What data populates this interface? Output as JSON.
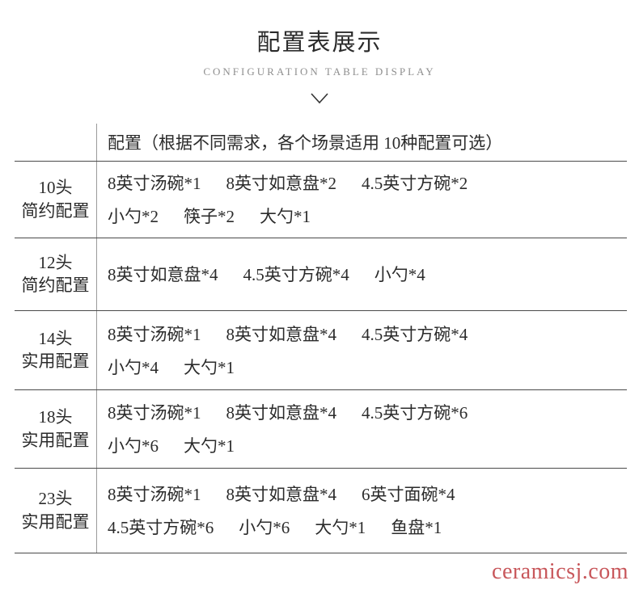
{
  "page": {
    "title": "配置表展示",
    "subtitle": "CONFIGURATION TABLE DISPLAY"
  },
  "icons": {
    "chevron_down": "chevron-down-icon"
  },
  "table": {
    "header": "配置（根据不同需求，各个场景适用 10种配置可选）",
    "rows": [
      {
        "label_lines": [
          "10头",
          "简约配置"
        ],
        "content_lines": [
          [
            "8英寸汤碗*1",
            "8英寸如意盘*2",
            "4.5英寸方碗*2"
          ],
          [
            "小勺*2",
            "筷子*2",
            "大勺*1"
          ]
        ]
      },
      {
        "label_lines": [
          "12头",
          "简约配置"
        ],
        "content_lines": [
          [
            "8英寸如意盘*4",
            "4.5英寸方碗*4",
            "小勺*4"
          ]
        ]
      },
      {
        "label_lines": [
          "14头",
          "实用配置"
        ],
        "content_lines": [
          [
            "8英寸汤碗*1",
            "8英寸如意盘*4",
            "4.5英寸方碗*4"
          ],
          [
            "小勺*4",
            "大勺*1"
          ]
        ]
      },
      {
        "label_lines": [
          "18头",
          "实用配置"
        ],
        "content_lines": [
          [
            "8英寸汤碗*1",
            "8英寸如意盘*4",
            "4.5英寸方碗*6"
          ],
          [
            "小勺*6",
            "大勺*1"
          ]
        ]
      },
      {
        "label_lines": [
          "23头",
          "实用配置"
        ],
        "content_lines": [
          [
            "8英寸汤碗*1",
            "8英寸如意盘*4",
            "6英寸面碗*4"
          ],
          [
            "4.5英寸方碗*6",
            "小勺*6",
            "大勺*1",
            "鱼盘*1"
          ]
        ]
      }
    ]
  },
  "watermark": {
    "text": "ceramicsj.com",
    "color": "#c8575b"
  },
  "colors": {
    "text": "#2b2b2b",
    "subtitle": "#8f8f8f",
    "divider_horizontal": "#4a4a4a",
    "divider_vertical": "#9a9a9a",
    "chevron": "#333333"
  }
}
